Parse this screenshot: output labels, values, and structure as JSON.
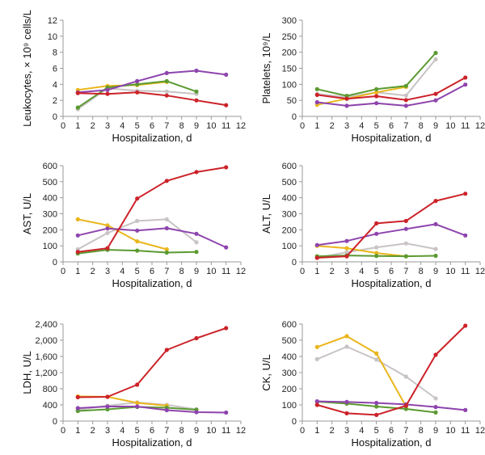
{
  "series_colors": {
    "red": "#cc2229",
    "purple": "#8e44ad",
    "green": "#5b9a31",
    "yellow": "#eab61c",
    "gray": "#c8c3c5"
  },
  "chart_data": [
    {
      "type": "line",
      "xlabel": "Hospitalization, d",
      "ylabel": "Leukocytes, × 10⁹ cells/L",
      "xlim": [
        0,
        12
      ],
      "ylim": [
        0,
        12
      ],
      "xticks": [
        "0",
        "1",
        "2",
        "3",
        "4",
        "5",
        "6",
        "7",
        "8",
        "9",
        "10",
        "11",
        "12"
      ],
      "yticks": [
        "0",
        "2",
        "4",
        "6",
        "8",
        "10",
        "12"
      ],
      "series": [
        {
          "color": "red",
          "x": [
            1,
            3,
            5,
            7,
            9,
            11
          ],
          "y": [
            2.9,
            2.8,
            3.0,
            2.6,
            2.0,
            1.4
          ]
        },
        {
          "color": "purple",
          "x": [
            1,
            3,
            5,
            7,
            9,
            11
          ],
          "y": [
            3.0,
            3.3,
            4.4,
            5.4,
            5.7,
            5.2
          ]
        },
        {
          "color": "green",
          "x": [
            1,
            3,
            5,
            7,
            9
          ],
          "y": [
            1.1,
            3.6,
            4.0,
            4.4,
            3.1
          ]
        },
        {
          "color": "yellow",
          "x": [
            1,
            3,
            5,
            7
          ],
          "y": [
            3.3,
            3.8,
            3.9,
            4.3
          ]
        },
        {
          "color": "gray",
          "x": [
            1,
            3,
            5,
            7,
            9
          ],
          "y": [
            0.9,
            3.5,
            3.2,
            3.1,
            2.8
          ]
        }
      ]
    },
    {
      "type": "line",
      "xlabel": "Hospitalization, d",
      "ylabel": "Platelets, 10⁹/L",
      "xlim": [
        0,
        12
      ],
      "ylim": [
        0,
        300
      ],
      "xticks": [
        "0",
        "1",
        "2",
        "3",
        "4",
        "5",
        "6",
        "7",
        "8",
        "9",
        "10",
        "11",
        "12"
      ],
      "yticks": [
        "0",
        "50",
        "100",
        "150",
        "200",
        "250",
        "300"
      ],
      "series": [
        {
          "color": "red",
          "x": [
            1,
            3,
            5,
            7,
            9,
            11
          ],
          "y": [
            67,
            55,
            63,
            51,
            70,
            121
          ]
        },
        {
          "color": "purple",
          "x": [
            1,
            3,
            5,
            7,
            9,
            11
          ],
          "y": [
            44,
            33,
            41,
            33,
            50,
            99
          ]
        },
        {
          "color": "green",
          "x": [
            1,
            3,
            5,
            7,
            9
          ],
          "y": [
            85,
            64,
            85,
            95,
            198
          ]
        },
        {
          "color": "yellow",
          "x": [
            1,
            3,
            5,
            7
          ],
          "y": [
            36,
            55,
            75,
            92
          ]
        },
        {
          "color": "gray",
          "x": [
            1,
            3,
            5,
            7,
            9
          ],
          "y": [
            70,
            60,
            75,
            65,
            178
          ]
        }
      ]
    },
    {
      "type": "line",
      "xlabel": "Hospitalization, d",
      "ylabel": "AST, U/L",
      "xlim": [
        0,
        12
      ],
      "ylim": [
        0,
        600
      ],
      "xticks": [
        "0",
        "1",
        "2",
        "3",
        "4",
        "5",
        "6",
        "7",
        "8",
        "9",
        "10",
        "11",
        "12"
      ],
      "yticks": [
        "0",
        "100",
        "200",
        "300",
        "400",
        "500",
        "600"
      ],
      "series": [
        {
          "color": "red",
          "x": [
            1,
            3,
            5,
            7,
            9,
            11
          ],
          "y": [
            62,
            85,
            395,
            505,
            560,
            590
          ]
        },
        {
          "color": "purple",
          "x": [
            1,
            3,
            5,
            7,
            9,
            11
          ],
          "y": [
            165,
            208,
            195,
            210,
            175,
            90
          ]
        },
        {
          "color": "green",
          "x": [
            1,
            3,
            5,
            7,
            9
          ],
          "y": [
            52,
            75,
            70,
            58,
            62
          ]
        },
        {
          "color": "yellow",
          "x": [
            1,
            3,
            5,
            7
          ],
          "y": [
            265,
            228,
            128,
            78
          ]
        },
        {
          "color": "gray",
          "x": [
            1,
            3,
            5,
            7,
            9
          ],
          "y": [
            78,
            180,
            255,
            265,
            122
          ]
        }
      ]
    },
    {
      "type": "line",
      "xlabel": "Hospitalization, d",
      "ylabel": "ALT, U/L",
      "xlim": [
        0,
        12
      ],
      "ylim": [
        0,
        600
      ],
      "xticks": [
        "0",
        "1",
        "2",
        "3",
        "4",
        "5",
        "6",
        "7",
        "8",
        "9",
        "10",
        "11",
        "12"
      ],
      "yticks": [
        "0",
        "100",
        "200",
        "300",
        "400",
        "500",
        "600"
      ],
      "series": [
        {
          "color": "red",
          "x": [
            1,
            3,
            5,
            7,
            9,
            11
          ],
          "y": [
            25,
            35,
            240,
            255,
            380,
            425
          ]
        },
        {
          "color": "purple",
          "x": [
            1,
            3,
            5,
            7,
            9,
            11
          ],
          "y": [
            105,
            130,
            175,
            205,
            235,
            165
          ]
        },
        {
          "color": "green",
          "x": [
            1,
            3,
            5,
            7,
            9
          ],
          "y": [
            35,
            40,
            37,
            35,
            38
          ]
        },
        {
          "color": "yellow",
          "x": [
            1,
            3,
            5,
            7
          ],
          "y": [
            100,
            85,
            55,
            35
          ]
        },
        {
          "color": "gray",
          "x": [
            1,
            3,
            5,
            7,
            9
          ],
          "y": [
            25,
            60,
            90,
            115,
            80
          ]
        }
      ]
    },
    {
      "type": "line",
      "xlabel": "Hospitalization, d",
      "ylabel": "LDH, U/L",
      "xlim": [
        0,
        12
      ],
      "ylim": [
        0,
        2400
      ],
      "xticks": [
        "0",
        "1",
        "2",
        "3",
        "4",
        "5",
        "6",
        "7",
        "8",
        "9",
        "10",
        "11",
        "12"
      ],
      "yticks": [
        "0",
        "400",
        "800",
        "1,200",
        "1,600",
        "2,000",
        "2,400"
      ],
      "series": [
        {
          "color": "red",
          "x": [
            1,
            3,
            5,
            7,
            9,
            11
          ],
          "y": [
            590,
            600,
            900,
            1760,
            2050,
            2300
          ]
        },
        {
          "color": "purple",
          "x": [
            1,
            3,
            5,
            7,
            9,
            11
          ],
          "y": [
            320,
            360,
            360,
            270,
            220,
            210
          ]
        },
        {
          "color": "green",
          "x": [
            1,
            3,
            5,
            7,
            9
          ],
          "y": [
            250,
            290,
            350,
            330,
            280
          ]
        },
        {
          "color": "yellow",
          "x": [
            1,
            3,
            5,
            7
          ],
          "y": [
            610,
            600,
            450,
            380
          ]
        },
        {
          "color": "gray",
          "x": [
            1,
            3,
            5,
            7,
            9
          ],
          "y": [
            280,
            380,
            460,
            400,
            290
          ]
        }
      ]
    },
    {
      "type": "line",
      "xlabel": "Hospitalization, d",
      "ylabel": "CK, U/L",
      "xlim": [
        0,
        12
      ],
      "ylim": [
        0,
        600
      ],
      "xticks": [
        "0",
        "1",
        "2",
        "3",
        "4",
        "5",
        "6",
        "7",
        "8",
        "9",
        "10",
        "11",
        "12"
      ],
      "yticks": [
        "0",
        "100",
        "200",
        "300",
        "400",
        "500",
        "600"
      ],
      "series": [
        {
          "color": "red",
          "x": [
            1,
            3,
            5,
            7,
            9,
            11
          ],
          "y": [
            100,
            48,
            38,
            95,
            410,
            590
          ]
        },
        {
          "color": "purple",
          "x": [
            1,
            3,
            5,
            7,
            9,
            11
          ],
          "y": [
            122,
            118,
            112,
            103,
            87,
            68
          ]
        },
        {
          "color": "green",
          "x": [
            1,
            3,
            5,
            7,
            9
          ],
          "y": [
            120,
            108,
            90,
            75,
            53
          ]
        },
        {
          "color": "yellow",
          "x": [
            1,
            3,
            5,
            7
          ],
          "y": [
            458,
            525,
            418,
            90
          ]
        },
        {
          "color": "gray",
          "x": [
            1,
            3,
            5,
            7,
            9
          ],
          "y": [
            383,
            460,
            380,
            275,
            140
          ]
        }
      ]
    }
  ]
}
